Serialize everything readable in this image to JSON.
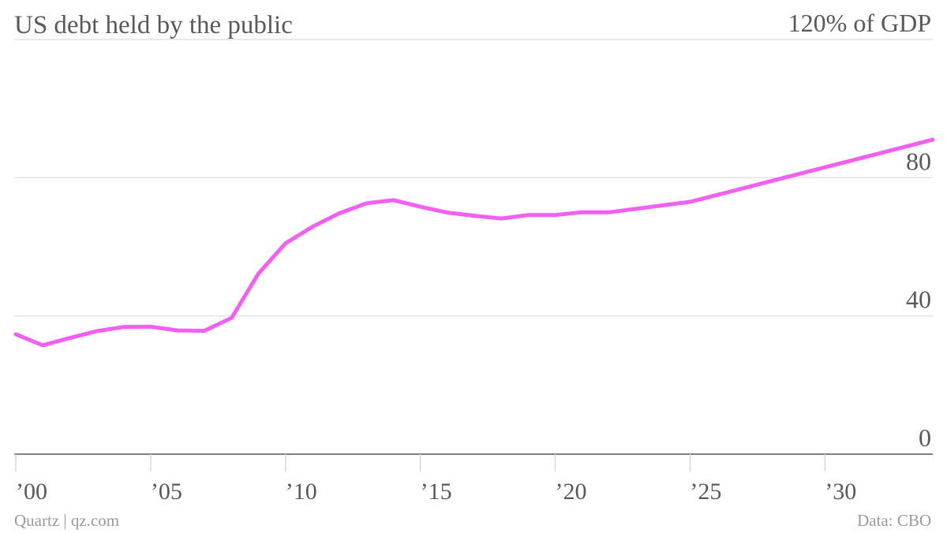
{
  "chart_data": {
    "type": "line",
    "title": "US debt held by the public",
    "ylim": [
      0,
      120
    ],
    "y_ticks": [
      {
        "value": 120,
        "label": "120% of GDP"
      },
      {
        "value": 80,
        "label": "80"
      },
      {
        "value": 40,
        "label": "40"
      },
      {
        "value": 0,
        "label": "0"
      }
    ],
    "x_ticks": [
      {
        "value": 2000,
        "label": "’00"
      },
      {
        "value": 2005,
        "label": "’05"
      },
      {
        "value": 2010,
        "label": "’10"
      },
      {
        "value": 2015,
        "label": "’15"
      },
      {
        "value": 2020,
        "label": "’20"
      },
      {
        "value": 2025,
        "label": "’25"
      },
      {
        "value": 2030,
        "label": "’30"
      }
    ],
    "xlim": [
      2000,
      2034
    ],
    "grid": true,
    "line_color": "#f25ff2",
    "series": [
      {
        "x": [
          2000,
          2001,
          2002,
          2003,
          2004,
          2005,
          2006,
          2007,
          2008,
          2009,
          2010,
          2011,
          2012,
          2013,
          2014,
          2015,
          2016,
          2017,
          2018,
          2019,
          2020,
          2021,
          2022,
          2023,
          2024,
          2025,
          2026,
          2027,
          2028,
          2029,
          2030,
          2031,
          2032,
          2033,
          2034
        ],
        "values": [
          34.7,
          31.5,
          33.6,
          35.6,
          36.8,
          36.9,
          35.8,
          35.7,
          39.4,
          52.3,
          61.0,
          65.8,
          69.7,
          72.6,
          73.5,
          71.6,
          69.9,
          69.0,
          68.2,
          69.2,
          69.2,
          70.0,
          70.0,
          71.0,
          72.0,
          73.0,
          75.0,
          77.0,
          79.0,
          81.0,
          83.0,
          85.0,
          87.0,
          89.0,
          91.0
        ]
      }
    ]
  },
  "footer": {
    "source_left": "Quartz | qz.com",
    "source_right": "Data: CBO"
  }
}
